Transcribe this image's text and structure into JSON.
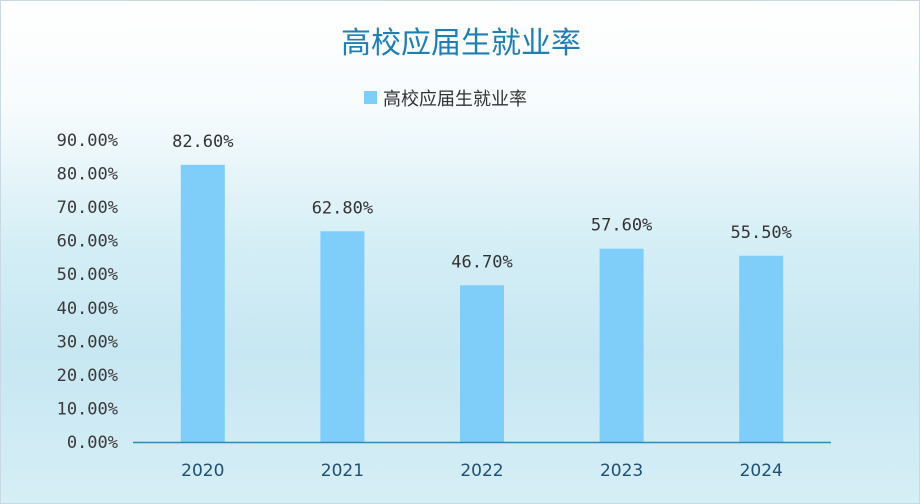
{
  "chart_data": {
    "type": "bar",
    "title": "高校应届生就业率",
    "legend": {
      "position": "top",
      "entries": [
        "高校应届生就业率"
      ]
    },
    "categories": [
      "2020",
      "2021",
      "2022",
      "2023",
      "2024"
    ],
    "series": [
      {
        "name": "高校应届生就业率",
        "values": [
          82.6,
          62.8,
          46.7,
          57.6,
          55.5
        ],
        "labels": [
          "82.60%",
          "62.80%",
          "46.70%",
          "57.60%",
          "55.50%"
        ]
      }
    ],
    "yticks": [
      "0.00%",
      "10.00%",
      "20.00%",
      "30.00%",
      "40.00%",
      "50.00%",
      "60.00%",
      "70.00%",
      "80.00%",
      "90.00%"
    ],
    "ylim": [
      0,
      90
    ],
    "grid": false,
    "xlabel": "",
    "ylabel": "",
    "colors": {
      "bar": "#7ecef9",
      "axis": "#2e8bb5",
      "title": "#1f7fb3"
    }
  }
}
